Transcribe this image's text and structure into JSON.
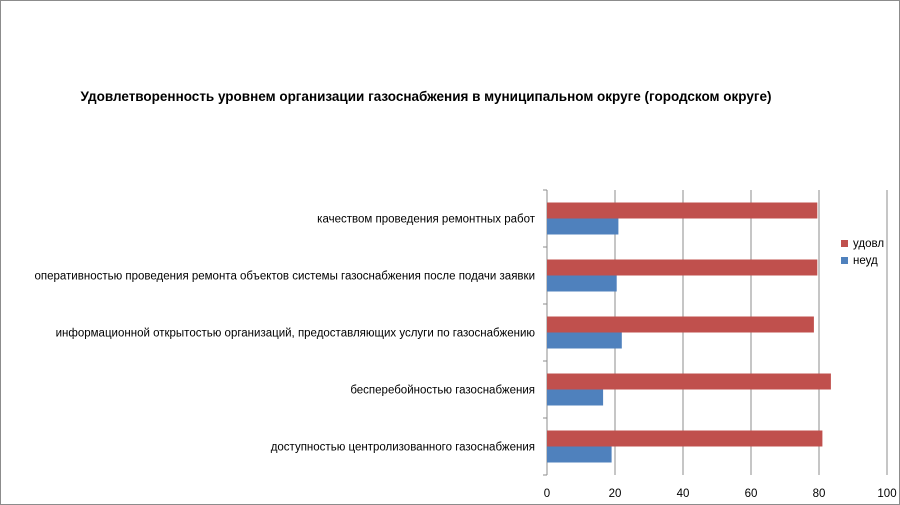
{
  "chart_data": {
    "type": "bar",
    "orientation": "horizontal",
    "title": "Удовлетворенность уровнем организации газоснабжения в муниципальном округе (городском округе)",
    "categories": [
      "качеством проведения ремонтных работ",
      "оперативностью проведения ремонта объектов системы газоснабжения после подачи заявки",
      "информационной открытостью организаций, предоставляющих услуги по газоснабжению",
      "бесперебойностью газоснабжения",
      "доступностью центролизованного газоснабжения"
    ],
    "series": [
      {
        "name": "удовл",
        "color": "#c0504d",
        "values": [
          79.5,
          79.5,
          78.5,
          83.5,
          81
        ]
      },
      {
        "name": "неуд",
        "color": "#4f81bd",
        "values": [
          21,
          20.5,
          22,
          16.5,
          19
        ]
      }
    ],
    "xlim": [
      0,
      100
    ],
    "xticks": [
      "0",
      "20",
      "40",
      "60",
      "80",
      "100"
    ],
    "grid": true,
    "legend_position": "right"
  }
}
